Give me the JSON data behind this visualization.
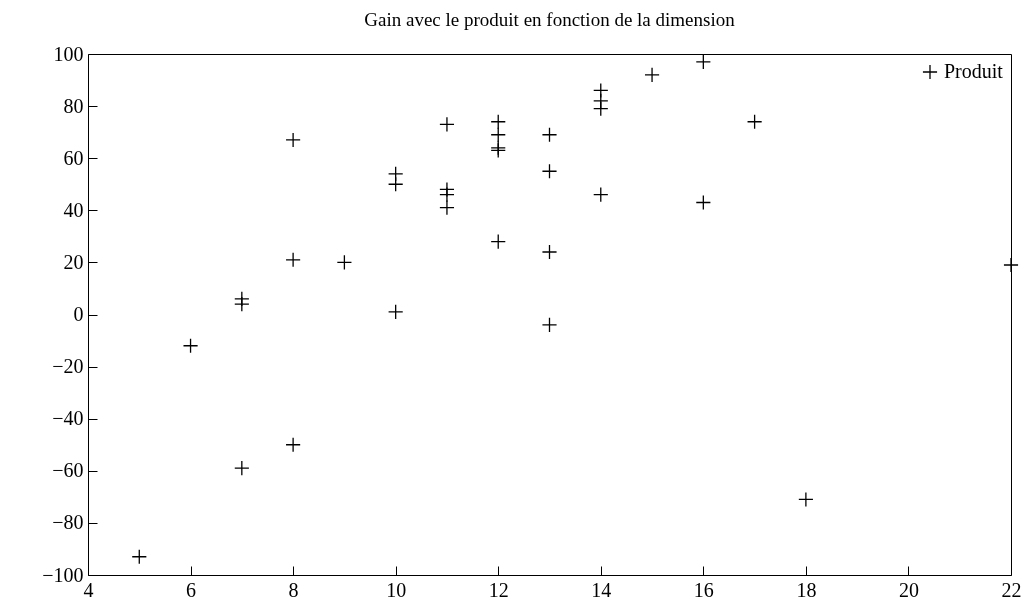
{
  "chart_data": {
    "type": "scatter",
    "title": "Gain avec le produit en fonction de la dimension",
    "x": [
      5,
      6,
      7,
      7,
      7,
      8,
      8,
      8,
      9,
      10,
      10,
      10,
      11,
      11,
      11,
      11,
      12,
      12,
      12,
      12,
      12,
      13,
      13,
      13,
      13,
      14,
      14,
      14,
      14,
      15,
      16,
      16,
      17,
      18,
      22
    ],
    "series": [
      {
        "name": "Produit",
        "color": "#000000",
        "values": [
          -93,
          -12,
          6,
          4,
          -59,
          67,
          21,
          -50,
          20,
          54,
          50,
          1,
          73,
          48,
          46,
          41,
          74,
          69,
          64,
          63,
          28,
          69,
          55,
          24,
          -4,
          86,
          82,
          79,
          46,
          92,
          97,
          43,
          74,
          -71,
          19
        ]
      }
    ],
    "xlim": [
      4,
      22
    ],
    "xticks": [
      4,
      6,
      8,
      10,
      12,
      14,
      16,
      18,
      20,
      22
    ],
    "ylim": [
      -100,
      100
    ],
    "yticks": [
      -100,
      -80,
      -60,
      -40,
      -20,
      0,
      20,
      40,
      60,
      80,
      100
    ],
    "marker": "cross",
    "grid": false,
    "legend": "top right"
  }
}
